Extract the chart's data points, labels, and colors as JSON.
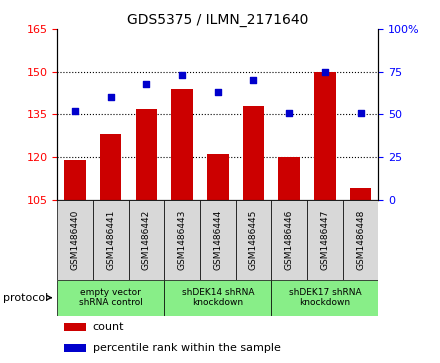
{
  "title": "GDS5375 / ILMN_2171640",
  "samples": [
    "GSM1486440",
    "GSM1486441",
    "GSM1486442",
    "GSM1486443",
    "GSM1486444",
    "GSM1486445",
    "GSM1486446",
    "GSM1486447",
    "GSM1486448"
  ],
  "counts": [
    119,
    128,
    137,
    144,
    121,
    138,
    120,
    150,
    109
  ],
  "percentile_ranks": [
    52,
    60,
    68,
    73,
    63,
    70,
    51,
    75,
    51
  ],
  "ymin": 105,
  "ymax": 165,
  "yticks": [
    105,
    120,
    135,
    150,
    165
  ],
  "y2min": 0,
  "y2max": 100,
  "y2ticks": [
    0,
    25,
    50,
    75,
    100
  ],
  "bar_color": "#cc0000",
  "dot_color": "#0000cc",
  "protocol_groups": [
    {
      "label": "empty vector\nshRNA control",
      "start": 0,
      "end": 3
    },
    {
      "label": "shDEK14 shRNA\nknockdown",
      "start": 3,
      "end": 6
    },
    {
      "label": "shDEK17 shRNA\nknockdown",
      "start": 6,
      "end": 9
    }
  ],
  "protocol_label": "protocol",
  "legend_count_label": "count",
  "legend_percentile_label": "percentile rank within the sample",
  "sample_box_color": "#d8d8d8",
  "protocol_box_color": "#88ee88",
  "bg_color": "#ffffff",
  "grid_dotted_ticks": [
    120,
    135,
    150
  ]
}
